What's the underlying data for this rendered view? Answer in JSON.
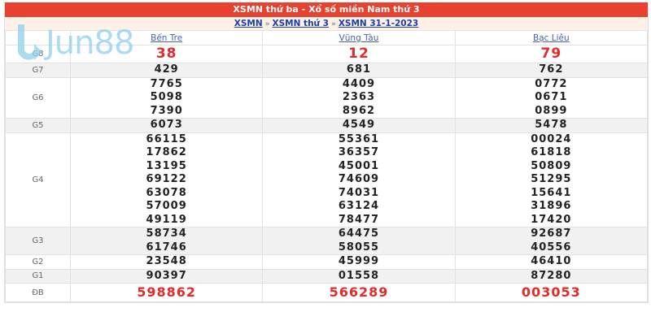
{
  "title": "XSMN thứ ba - Xổ số miền Nam thứ 3",
  "breadcrumb": [
    "XSMN",
    "XSMN thứ 3",
    "XSMN 31-1-2023"
  ],
  "breadcrumb_separator": "»",
  "watermark": "Jun88",
  "provinces": [
    "Bến Tre",
    "Vũng Tàu",
    "Bạc Liêu"
  ],
  "colors": {
    "header_red": "#e8412f",
    "prize_red": "#e52a2a",
    "link_blue": "#1a3fa8"
  },
  "rows": [
    {
      "label": "G8",
      "style": "red",
      "gray": false,
      "values": [
        [
          "38"
        ],
        [
          "12"
        ],
        [
          "79"
        ]
      ]
    },
    {
      "label": "G7",
      "gray": true,
      "values": [
        [
          "429"
        ],
        [
          "681"
        ],
        [
          "762"
        ]
      ]
    },
    {
      "label": "G6",
      "gray": false,
      "values": [
        [
          "7765",
          "5098",
          "7390"
        ],
        [
          "4409",
          "2363",
          "8962"
        ],
        [
          "0772",
          "0671",
          "0899"
        ]
      ]
    },
    {
      "label": "G5",
      "gray": true,
      "values": [
        [
          "6073"
        ],
        [
          "4549"
        ],
        [
          "5478"
        ]
      ]
    },
    {
      "label": "G4",
      "gray": false,
      "values": [
        [
          "66115",
          "17862",
          "13195",
          "69122",
          "63078",
          "57009",
          "49119"
        ],
        [
          "55361",
          "36357",
          "45001",
          "74609",
          "74031",
          "63124",
          "78477"
        ],
        [
          "00024",
          "61818",
          "50809",
          "51295",
          "15641",
          "31896",
          "17420"
        ]
      ]
    },
    {
      "label": "G3",
      "gray": true,
      "values": [
        [
          "58734",
          "61746"
        ],
        [
          "64475",
          "58055"
        ],
        [
          "92687",
          "40556"
        ]
      ]
    },
    {
      "label": "G2",
      "gray": false,
      "values": [
        [
          "23548"
        ],
        [
          "45999"
        ],
        [
          "46410"
        ]
      ]
    },
    {
      "label": "G1",
      "gray": true,
      "values": [
        [
          "90397"
        ],
        [
          "01558"
        ],
        [
          "87280"
        ]
      ]
    },
    {
      "label": "ĐB",
      "style": "red big",
      "gray": false,
      "values": [
        [
          "598862"
        ],
        [
          "566289"
        ],
        [
          "003053"
        ]
      ]
    }
  ]
}
